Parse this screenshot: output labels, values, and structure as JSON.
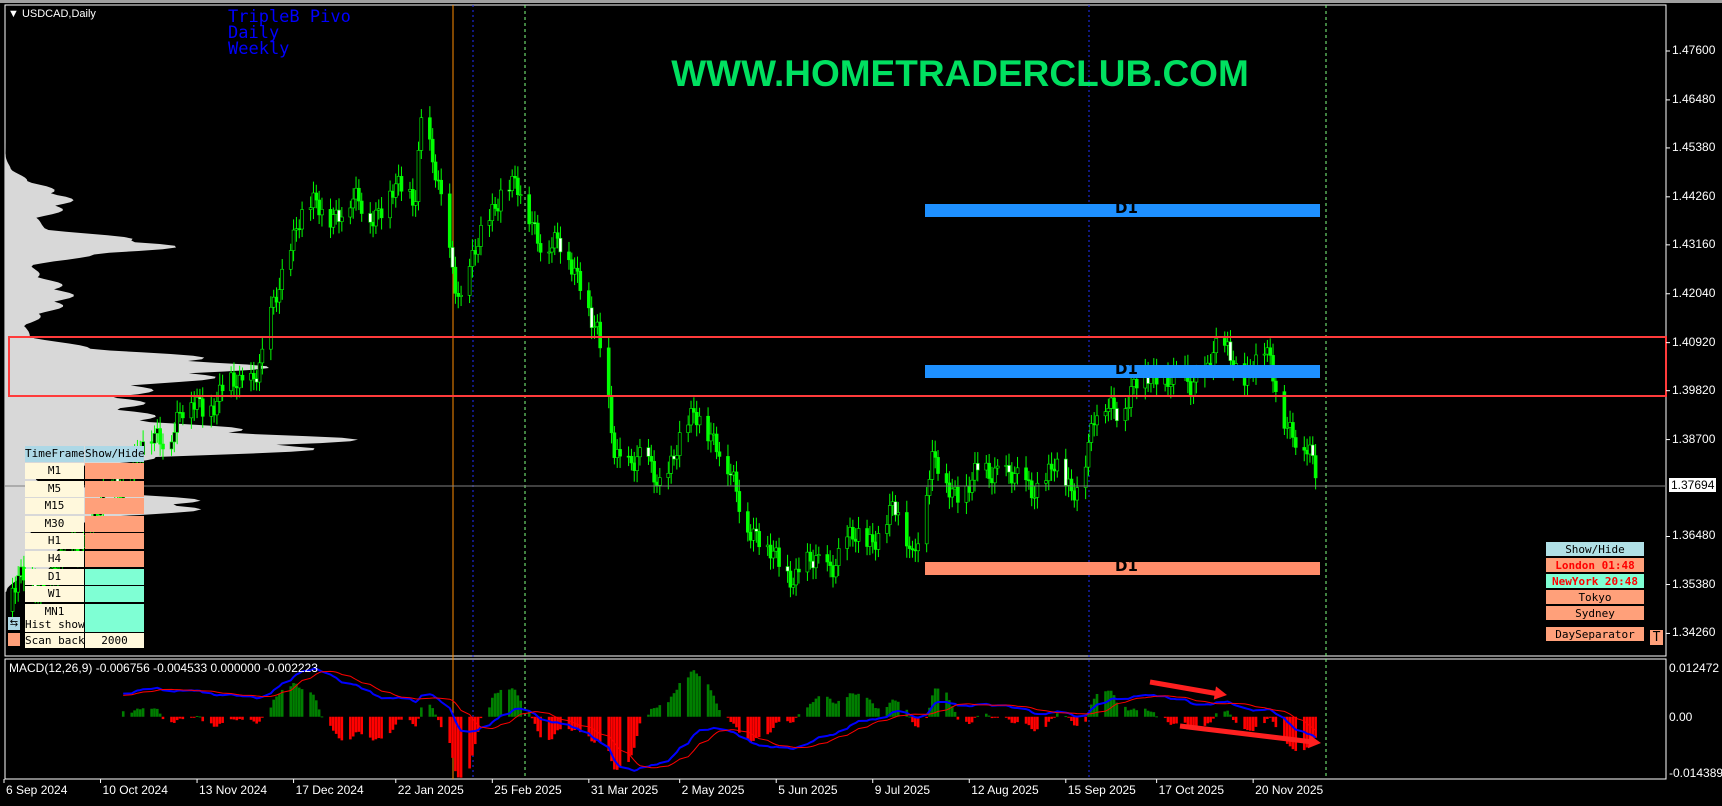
{
  "header": {
    "symbol_title": "USDCAD,Daily"
  },
  "indicator_text": {
    "line1": "TripleB Pivo",
    "line2": "Daily",
    "line3": "Weekly"
  },
  "watermark": "WWW.HOMETRADERCLUB.COM",
  "pivot_labels": [
    "D1",
    "D1",
    "D1"
  ],
  "colors": {
    "background": "#000000",
    "bull": "#00ff00",
    "macd_line": "#0000ff",
    "signal_line": "#ff0000",
    "hist_up": "#007f00",
    "hist_down": "#ff0000",
    "pivot_blue": "#1e90ff",
    "pivot_salmon": "#ff8c69",
    "zone_box": "#ff3b3b",
    "day_separator": "#ff8c00"
  },
  "price_axis": [
    "1.47600",
    "1.46480",
    "1.45380",
    "1.44260",
    "1.43160",
    "1.42040",
    "1.40920",
    "1.39820",
    "1.38700",
    "1.36480",
    "1.35380",
    "1.34260"
  ],
  "current_price": "1.37694",
  "macd": {
    "label": "MACD(12,26,9) -0.006756 -0.004533 0.000000 -0.002223",
    "axis": [
      "0.012472",
      "0.00",
      "-0.014389"
    ]
  },
  "time_axis": [
    "6 Sep 2024",
    "10 Oct 2024",
    "13 Nov 2024",
    "17 Dec 2024",
    "22 Jan 2025",
    "25 Feb 2025",
    "31 Mar 2025",
    "2 May 2025",
    "5 Jun 2025",
    "9 Jul 2025",
    "12 Aug 2025",
    "15 Sep 2025",
    "17 Oct 2025",
    "20 Nov 2025"
  ],
  "timeframe_panel": {
    "header": [
      "TimeFrame",
      "Show/Hide"
    ],
    "rows": [
      {
        "tf": "M1",
        "on": false
      },
      {
        "tf": "M5",
        "on": false
      },
      {
        "tf": "M15",
        "on": false
      },
      {
        "tf": "M30",
        "on": false
      },
      {
        "tf": "H1",
        "on": false
      },
      {
        "tf": "H4",
        "on": false
      },
      {
        "tf": "D1",
        "on": true
      },
      {
        "tf": "W1",
        "on": true
      },
      {
        "tf": "MN1",
        "on": true
      }
    ],
    "hist_show": "Hist show",
    "scan_back": "Scan back",
    "scan_back_value": "2000"
  },
  "sessions_panel": {
    "show_hide": "Show/Hide",
    "london": "London  01:48",
    "newyork": "NewYork  20:48",
    "tokyo": "Tokyo",
    "sydney": "Sydney",
    "day_separator": "DaySeparator",
    "t_button": "T"
  },
  "chart_data": {
    "type": "candlestick",
    "symbol": "USDCAD",
    "timeframe": "Daily",
    "ylim": [
      1.3426,
      1.479
    ],
    "pivots": [
      {
        "label": "D1",
        "price": 1.4415
      },
      {
        "label": "D1",
        "price": 1.4045
      },
      {
        "label": "D1",
        "price": 1.3635
      }
    ],
    "zone": [
      1.3975,
      1.4105
    ],
    "close_anchors": [
      [
        "2024-09-06",
        1.352
      ],
      [
        "2024-09-24",
        1.356
      ],
      [
        "2024-10-25",
        1.385
      ],
      [
        "2024-11-13",
        1.395
      ],
      [
        "2024-11-25",
        1.398
      ],
      [
        "2024-12-06",
        1.405
      ],
      [
        "2024-12-18",
        1.438
      ],
      [
        "2024-12-30",
        1.44
      ],
      [
        "2025-01-14",
        1.44
      ],
      [
        "2025-01-29",
        1.445
      ],
      [
        "2025-01-31",
        1.462
      ],
      [
        "2025-02-10",
        1.43
      ],
      [
        "2025-02-14",
        1.42
      ],
      [
        "2025-02-21",
        1.432
      ],
      [
        "2025-03-01",
        1.448
      ],
      [
        "2025-03-13",
        1.435
      ],
      [
        "2025-03-28",
        1.425
      ],
      [
        "2025-04-03",
        1.41
      ],
      [
        "2025-04-09",
        1.385
      ],
      [
        "2025-04-25",
        1.378
      ],
      [
        "2025-05-10",
        1.395
      ],
      [
        "2025-05-18",
        1.38
      ],
      [
        "2025-06-02",
        1.36
      ],
      [
        "2025-06-14",
        1.356
      ],
      [
        "2025-06-25",
        1.36
      ],
      [
        "2025-07-07",
        1.365
      ],
      [
        "2025-07-19",
        1.37
      ],
      [
        "2025-07-23",
        1.362
      ],
      [
        "2025-07-30",
        1.38
      ],
      [
        "2025-08-11",
        1.375
      ],
      [
        "2025-08-22",
        1.382
      ],
      [
        "2025-08-30",
        1.375
      ],
      [
        "2025-09-11",
        1.38
      ],
      [
        "2025-09-17",
        1.375
      ],
      [
        "2025-09-26",
        1.392
      ],
      [
        "2025-10-08",
        1.398
      ],
      [
        "2025-10-20",
        1.403
      ],
      [
        "2025-10-29",
        1.398
      ],
      [
        "2025-11-06",
        1.408
      ],
      [
        "2025-11-16",
        1.402
      ],
      [
        "2025-11-23",
        1.408
      ],
      [
        "2025-11-29",
        1.397
      ],
      [
        "2025-12-07",
        1.385
      ],
      [
        "2025-12-14",
        1.377
      ]
    ]
  }
}
